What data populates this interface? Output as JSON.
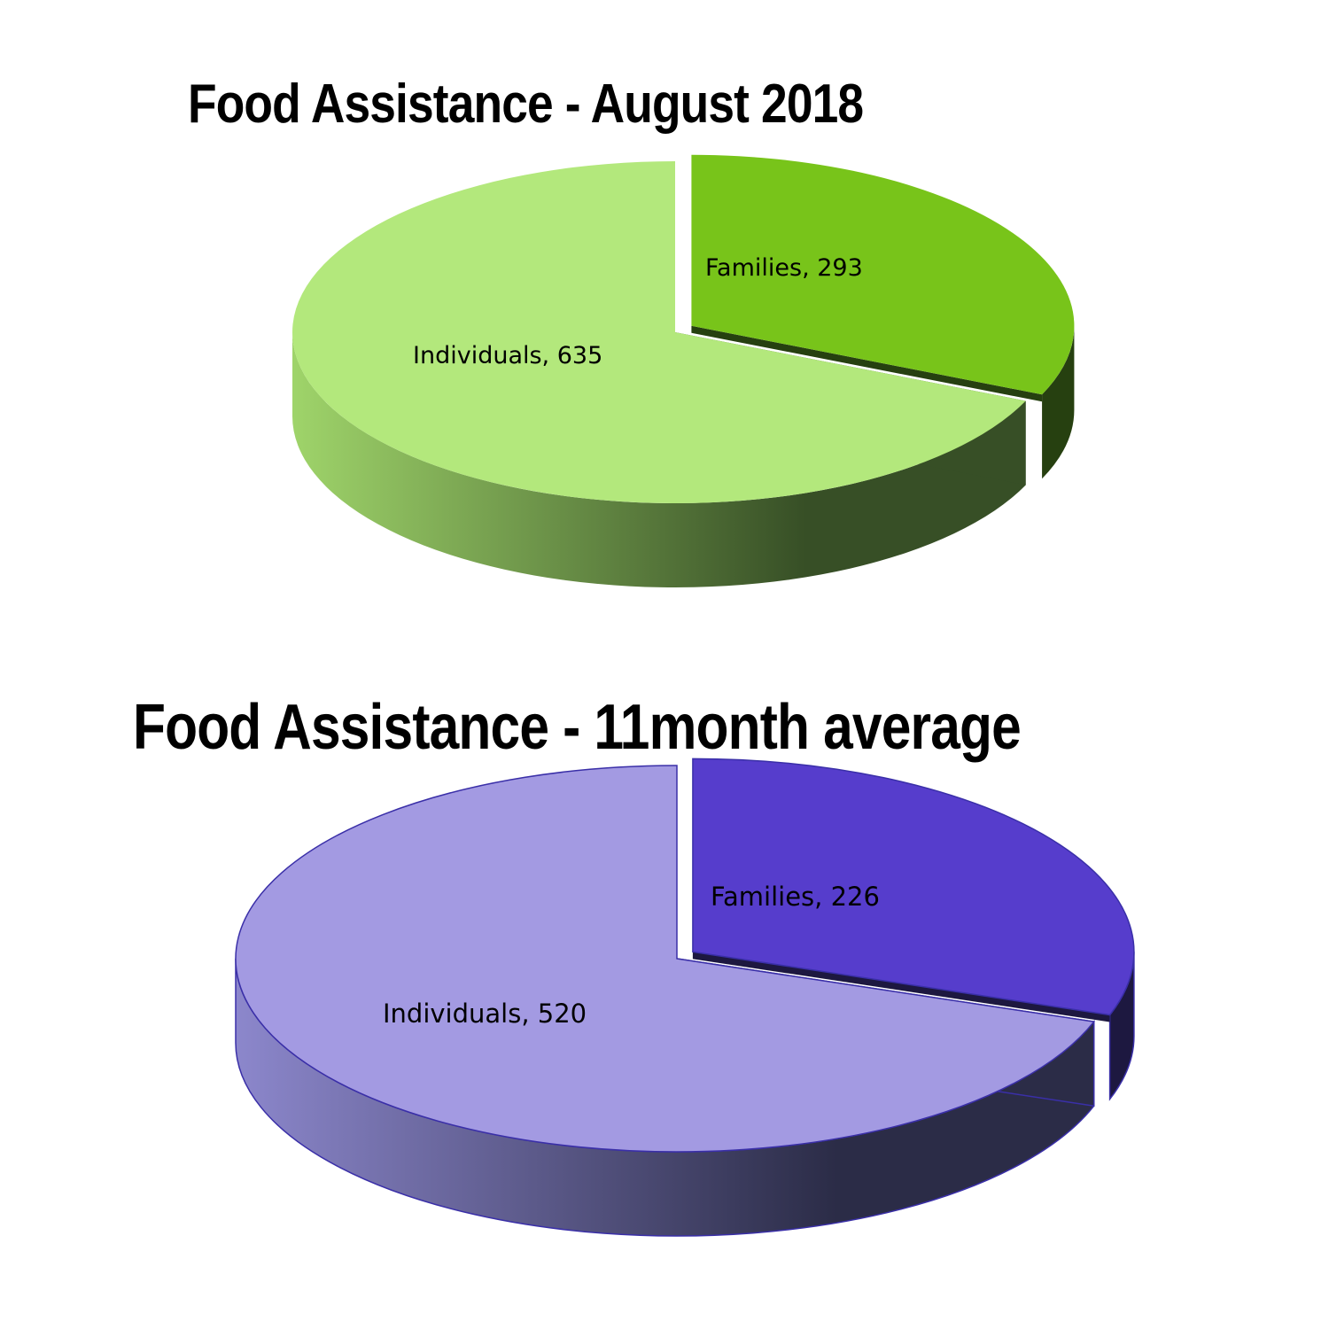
{
  "chart_data": [
    {
      "type": "pie",
      "title": "Food Assistance - August 2018",
      "categories": [
        "Families",
        "Individuals"
      ],
      "values": [
        293,
        635
      ],
      "data_labels": [
        "Families, 293",
        "Individuals, 635"
      ],
      "exploded": "Families",
      "style": "3d",
      "colors": {
        "Families": "#78c41a",
        "Individuals": "#b3e87c",
        "side_dark": "#374f26",
        "side_light": "#9fd46a",
        "families_side": "#264010"
      }
    },
    {
      "type": "pie",
      "title": "Food Assistance - 11month average",
      "categories": [
        "Families",
        "Individuals"
      ],
      "values": [
        226,
        520
      ],
      "data_labels": [
        "Families, 226",
        "Individuals, 520"
      ],
      "exploded": "Families",
      "style": "3d",
      "colors": {
        "Families": "#563dcc",
        "Individuals": "#a39ae2",
        "side_dark": "#2b2c47",
        "side_light": "#8c87cc",
        "families_side": "#1d1840",
        "outline": "#3a2fa8"
      }
    }
  ]
}
